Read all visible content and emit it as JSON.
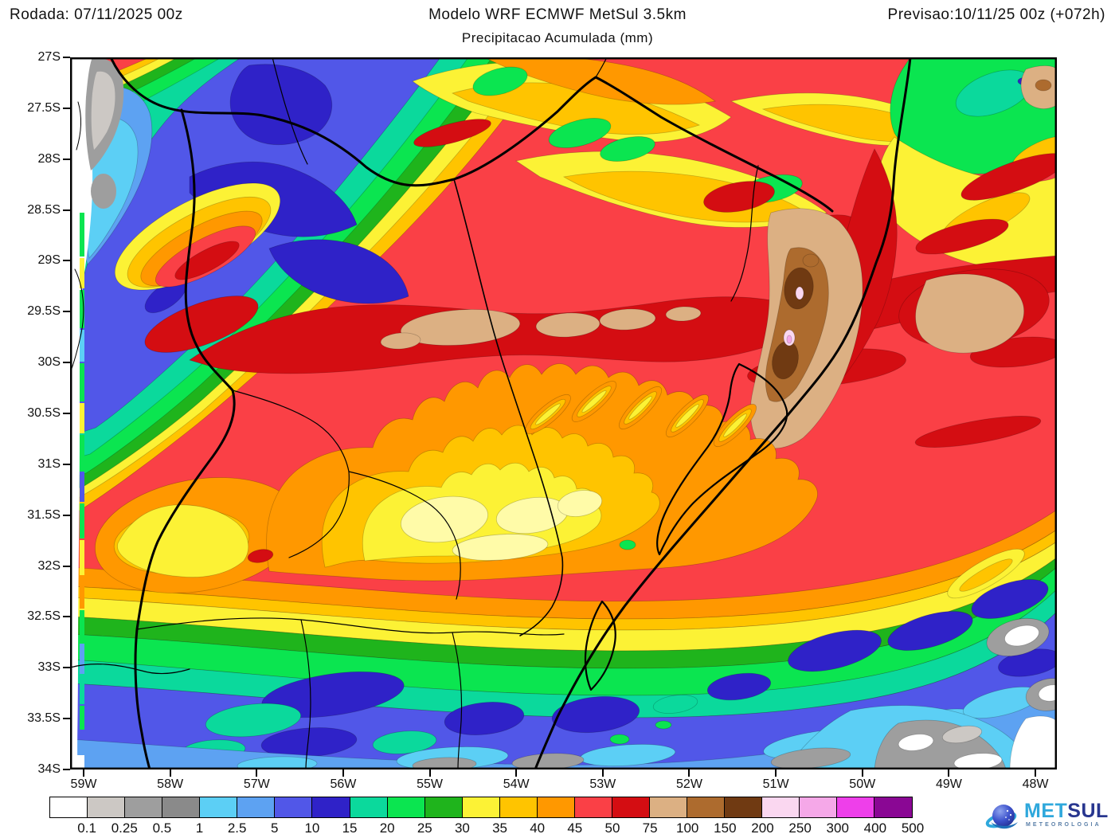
{
  "header": {
    "run_label": "Rodada: 07/11/2025 00z",
    "model_title": "Modelo WRF ECMWF MetSul 3.5km",
    "subtitle": "Precipitacao Acumulada (mm)",
    "forecast_label": "Previsao:10/11/25 00z (+072h)"
  },
  "map": {
    "y_axis_labels": [
      "27S",
      "27.5S",
      "28S",
      "28.5S",
      "29S",
      "29.5S",
      "30S",
      "30.5S",
      "31S",
      "31.5S",
      "32S",
      "32.5S",
      "33S",
      "33.5S",
      "34S"
    ],
    "x_axis_labels": [
      "59W",
      "58W",
      "57W",
      "56W",
      "55W",
      "54W",
      "53W",
      "52W",
      "51W",
      "50W",
      "49W",
      "48W"
    ]
  },
  "legend": {
    "values": [
      "0.1",
      "0.25",
      "0.5",
      "1",
      "2.5",
      "5",
      "10",
      "15",
      "20",
      "25",
      "30",
      "35",
      "40",
      "45",
      "50",
      "75",
      "100",
      "150",
      "200",
      "250",
      "300",
      "400",
      "500"
    ],
    "colors": [
      "#FFFFFF",
      "#CCC8C4",
      "#9E9E9E",
      "#8A8A8A",
      "#5CCFF5",
      "#5DA2F2",
      "#5157E8",
      "#2F22C8",
      "#0BD99C",
      "#0BE550",
      "#1FB41C",
      "#FCF235",
      "#FFC400",
      "#FF9800",
      "#FA4046",
      "#D40D12",
      "#DCB083",
      "#AD6B2E",
      "#703A12",
      "#FAD7F0",
      "#F5A8E8",
      "#EE3FEA",
      "#8A0794"
    ]
  },
  "logo": {
    "brand_met": "MET",
    "brand_sul": "SUL",
    "tagline": "METEOROLOGIA"
  }
}
